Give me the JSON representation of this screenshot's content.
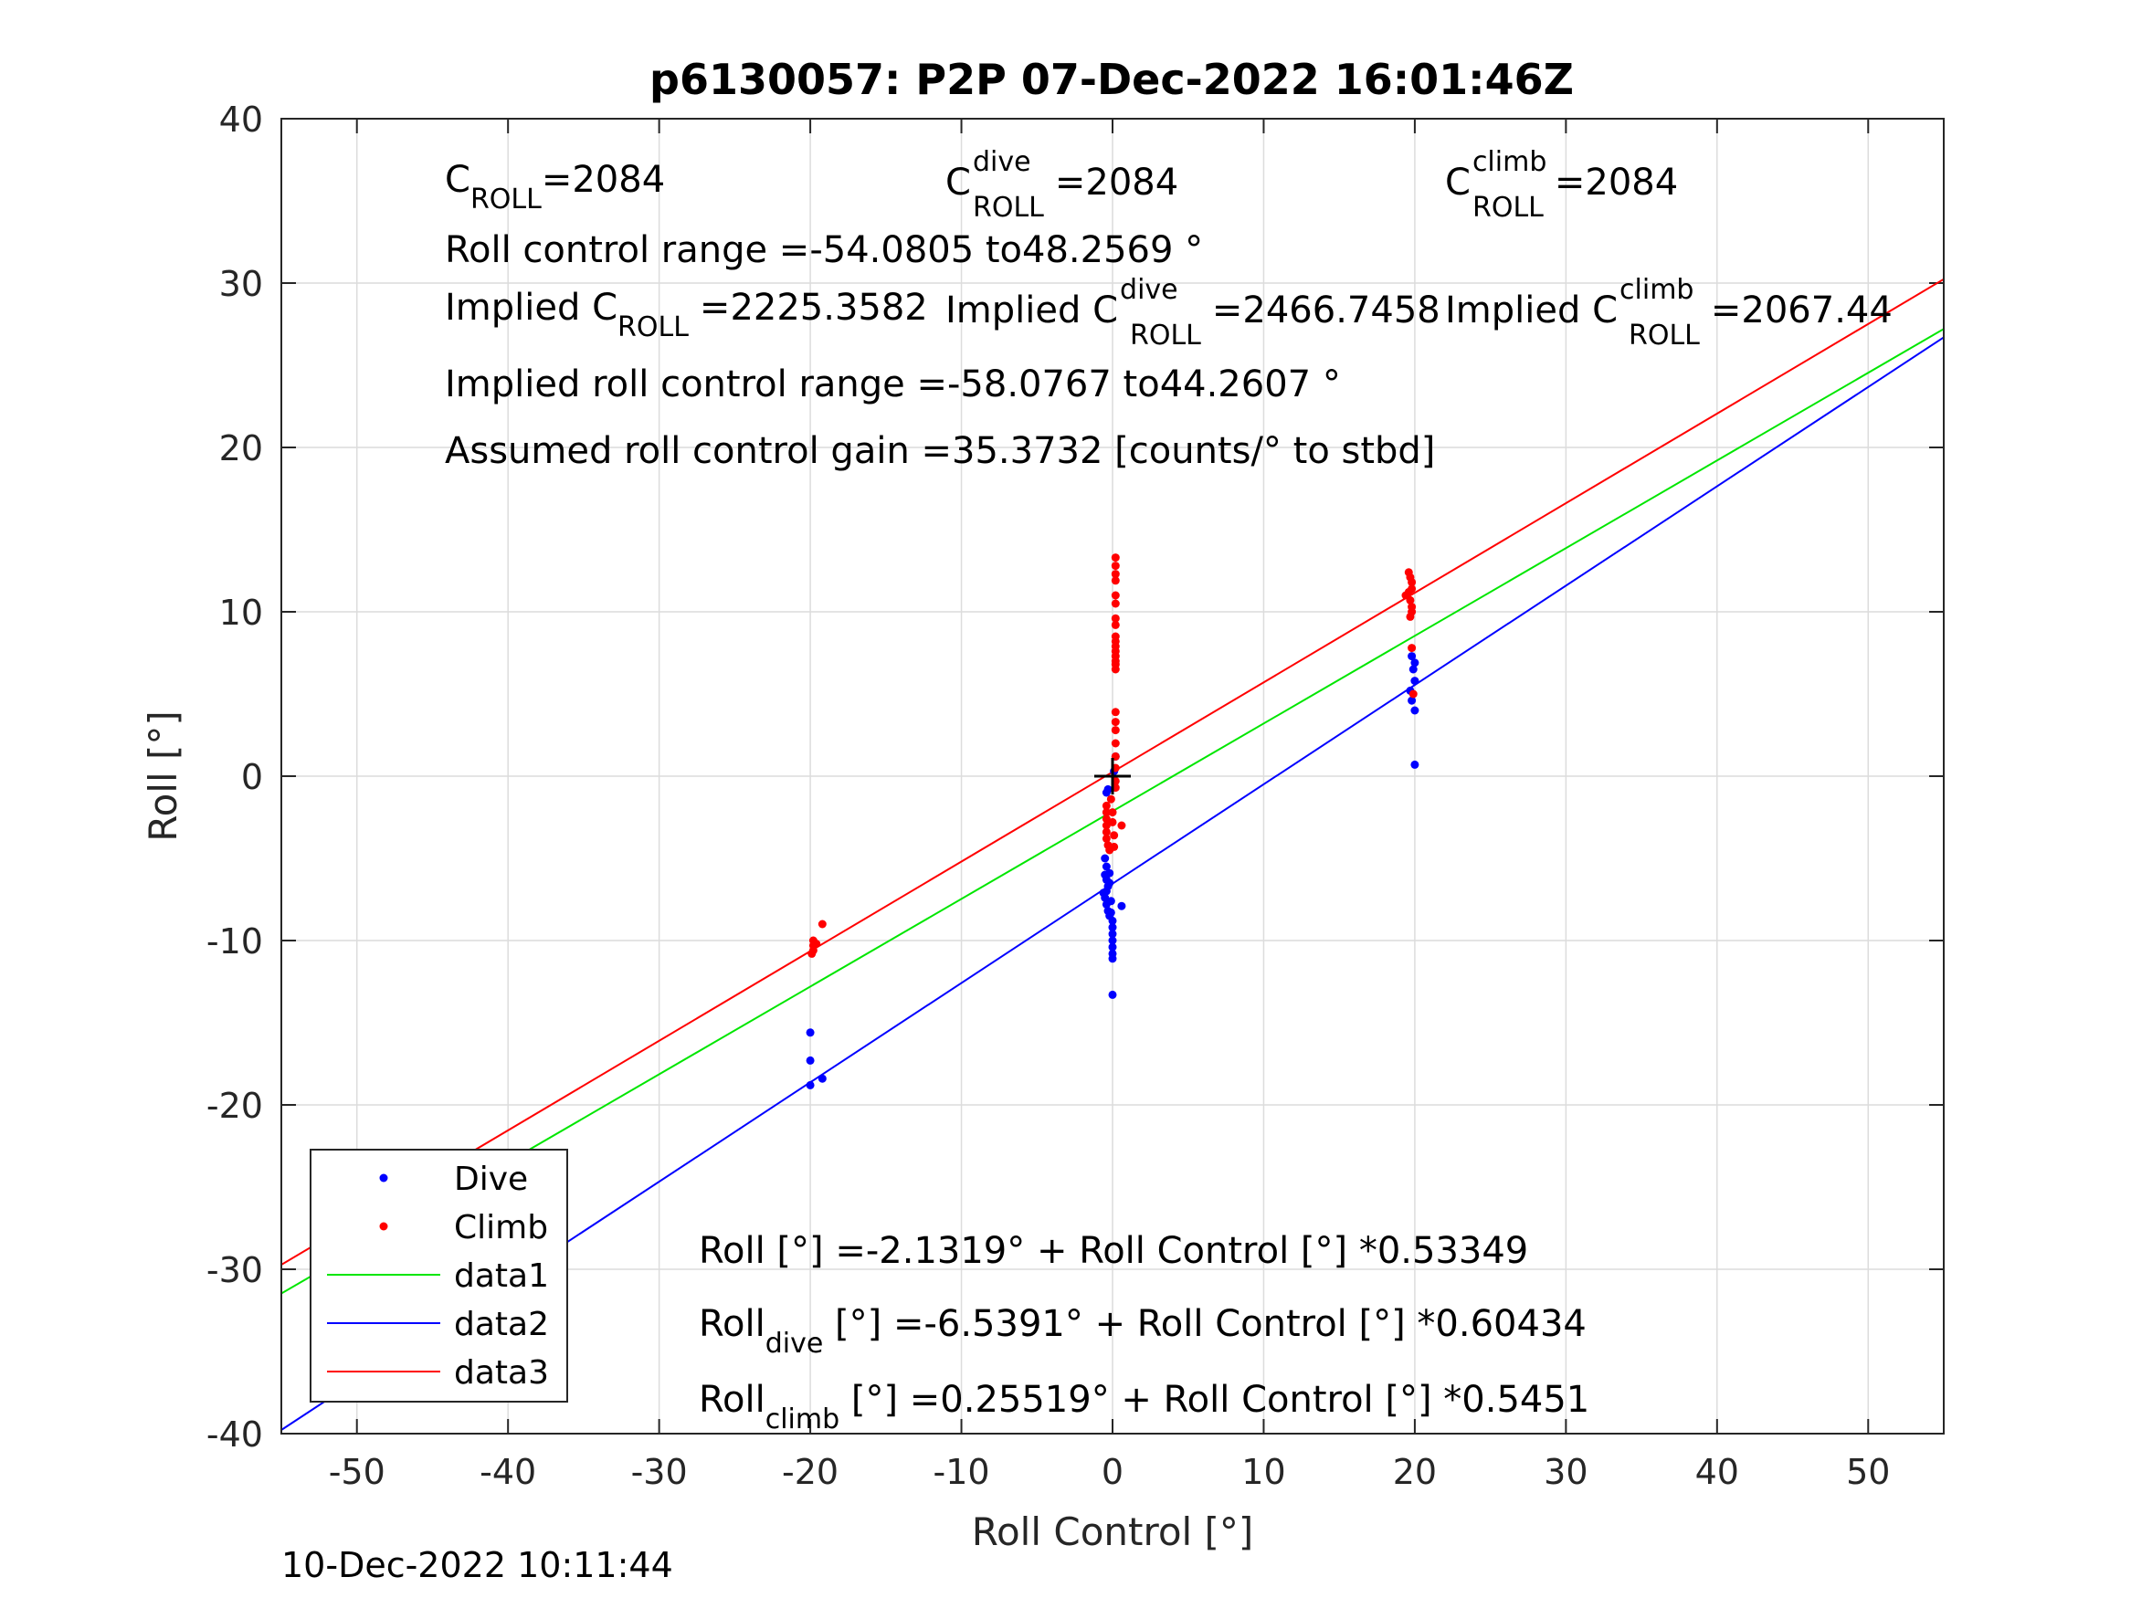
{
  "chart_data": {
    "type": "scatter",
    "title": "p6130057: P2P 07-Dec-2022 16:01:46Z",
    "xlabel": "Roll Control [°]",
    "ylabel": "Roll [°]",
    "xlim": [
      -55,
      55
    ],
    "ylim": [
      -40,
      40
    ],
    "xticks": [
      -50,
      -40,
      -30,
      -20,
      -10,
      0,
      10,
      20,
      30,
      40,
      50
    ],
    "yticks": [
      -40,
      -30,
      -20,
      -10,
      0,
      10,
      20,
      30,
      40
    ],
    "grid": true,
    "legend_position": "bottom-left",
    "timestamp": "10-Dec-2022 10:11:44",
    "center_marker": {
      "x": 0,
      "y": 0
    },
    "annotations": {
      "c_roll": {
        "main": "C",
        "sub": "ROLL",
        "sup": "",
        "value": "=2084"
      },
      "c_roll_dive": {
        "main": "C",
        "sub": "ROLL",
        "sup": "dive",
        "value": "=2084"
      },
      "c_roll_climb": {
        "main": "C",
        "sub": "ROLL",
        "sup": "climb",
        "value": "=2084"
      },
      "range": "Roll control range =-54.0805 to48.2569 °",
      "implied": {
        "main": "Implied C",
        "sub": "ROLL",
        "value": "=2225.3582"
      },
      "implied_dive": {
        "main": "Implied C",
        "sub": "ROLL",
        "sup": "dive",
        "value": "=2466.7458"
      },
      "implied_climb": {
        "main": "Implied C",
        "sub": "ROLL",
        "sup": "climb",
        "value": "=2067.44"
      },
      "implied_range": "Implied roll control range =-58.0767 to44.2607 °",
      "gain": "Assumed roll control gain =35.3732 [counts/° to stbd]",
      "fit_all": "Roll [°] =-2.1319° + Roll Control [°] *0.53349",
      "fit_dive": {
        "main": "Roll",
        "sub": "dive",
        "rest": " [°] =-6.5391° + Roll Control [°] *0.60434"
      },
      "fit_climb": {
        "main": "Roll",
        "sub": "climb",
        "rest": " [°] =0.25519° + Roll Control [°] *0.5451"
      }
    },
    "series": [
      {
        "name": "Dive",
        "kind": "points",
        "color": "#0000ff",
        "points": [
          [
            -20,
            -15.6
          ],
          [
            -20,
            -17.3
          ],
          [
            -20,
            -18.8
          ],
          [
            -19.2,
            -18.4
          ],
          [
            -0.4,
            -1.0
          ],
          [
            -0.3,
            -0.8
          ],
          [
            0.2,
            1.2
          ],
          [
            0.1,
            0.3
          ],
          [
            -0.5,
            -5.0
          ],
          [
            -0.4,
            -5.5
          ],
          [
            -0.5,
            -6.0
          ],
          [
            -0.4,
            -6.3
          ],
          [
            -0.3,
            -6.7
          ],
          [
            -0.4,
            -7.0
          ],
          [
            -0.5,
            -7.4
          ],
          [
            -0.4,
            -7.8
          ],
          [
            -0.3,
            -8.2
          ],
          [
            -0.2,
            -8.5
          ],
          [
            -0.1,
            -8.3
          ],
          [
            0.0,
            -8.8
          ],
          [
            0.0,
            -9.2
          ],
          [
            0.0,
            -9.6
          ],
          [
            0.0,
            -10.0
          ],
          [
            0.0,
            -10.4
          ],
          [
            0.0,
            -10.8
          ],
          [
            0.0,
            -11.1
          ],
          [
            0.0,
            -13.3
          ],
          [
            0.6,
            -7.9
          ],
          [
            -0.2,
            -6.5
          ],
          [
            -0.1,
            -7.6
          ],
          [
            -0.6,
            -7.1
          ],
          [
            -0.2,
            -5.9
          ],
          [
            19.8,
            7.3
          ],
          [
            20.0,
            6.9
          ],
          [
            19.9,
            6.5
          ],
          [
            20.0,
            5.8
          ],
          [
            19.7,
            5.2
          ],
          [
            19.8,
            4.6
          ],
          [
            20.0,
            4.0
          ],
          [
            20.0,
            0.7
          ]
        ]
      },
      {
        "name": "Climb",
        "kind": "points",
        "color": "#ff0000",
        "points": [
          [
            -19.8,
            -10.0
          ],
          [
            -19.8,
            -10.3
          ],
          [
            -19.8,
            -10.6
          ],
          [
            -19.9,
            -10.8
          ],
          [
            -19.6,
            -10.2
          ],
          [
            -19.2,
            -9.0
          ],
          [
            0.2,
            13.3
          ],
          [
            0.2,
            12.8
          ],
          [
            0.2,
            12.3
          ],
          [
            0.2,
            11.9
          ],
          [
            0.2,
            11.0
          ],
          [
            0.2,
            10.5
          ],
          [
            0.2,
            9.6
          ],
          [
            0.2,
            9.2
          ],
          [
            0.2,
            8.5
          ],
          [
            0.2,
            8.2
          ],
          [
            0.2,
            7.9
          ],
          [
            0.2,
            7.6
          ],
          [
            0.2,
            7.3
          ],
          [
            0.2,
            7.0
          ],
          [
            0.2,
            6.8
          ],
          [
            0.2,
            6.5
          ],
          [
            0.2,
            3.9
          ],
          [
            0.2,
            3.3
          ],
          [
            0.2,
            2.8
          ],
          [
            0.2,
            2.0
          ],
          [
            0.2,
            1.2
          ],
          [
            0.2,
            0.5
          ],
          [
            0.2,
            -0.3
          ],
          [
            0.2,
            -0.7
          ],
          [
            -0.4,
            -1.8
          ],
          [
            -0.4,
            -2.2
          ],
          [
            -0.4,
            -2.6
          ],
          [
            -0.4,
            -3.0
          ],
          [
            -0.4,
            -3.4
          ],
          [
            -0.4,
            -3.8
          ],
          [
            -0.3,
            -4.2
          ],
          [
            -0.2,
            -4.5
          ],
          [
            0.0,
            -2.2
          ],
          [
            0.0,
            -2.8
          ],
          [
            0.1,
            -3.6
          ],
          [
            0.1,
            -4.3
          ],
          [
            0.6,
            -3.0
          ],
          [
            -0.1,
            -1.4
          ],
          [
            19.6,
            12.4
          ],
          [
            19.7,
            12.1
          ],
          [
            19.8,
            11.8
          ],
          [
            19.8,
            11.4
          ],
          [
            19.6,
            11.2
          ],
          [
            19.4,
            11.0
          ],
          [
            19.7,
            10.7
          ],
          [
            19.8,
            10.3
          ],
          [
            19.8,
            10.0
          ],
          [
            19.7,
            9.7
          ],
          [
            19.8,
            7.8
          ],
          [
            19.9,
            5.0
          ]
        ]
      },
      {
        "name": "data1",
        "kind": "line",
        "color": "#00e600",
        "intercept": -2.1319,
        "slope": 0.53349
      },
      {
        "name": "data2",
        "kind": "line",
        "color": "#0000ff",
        "intercept": -6.5391,
        "slope": 0.60434
      },
      {
        "name": "data3",
        "kind": "line",
        "color": "#ff0000",
        "intercept": 0.25519,
        "slope": 0.5451
      }
    ]
  }
}
